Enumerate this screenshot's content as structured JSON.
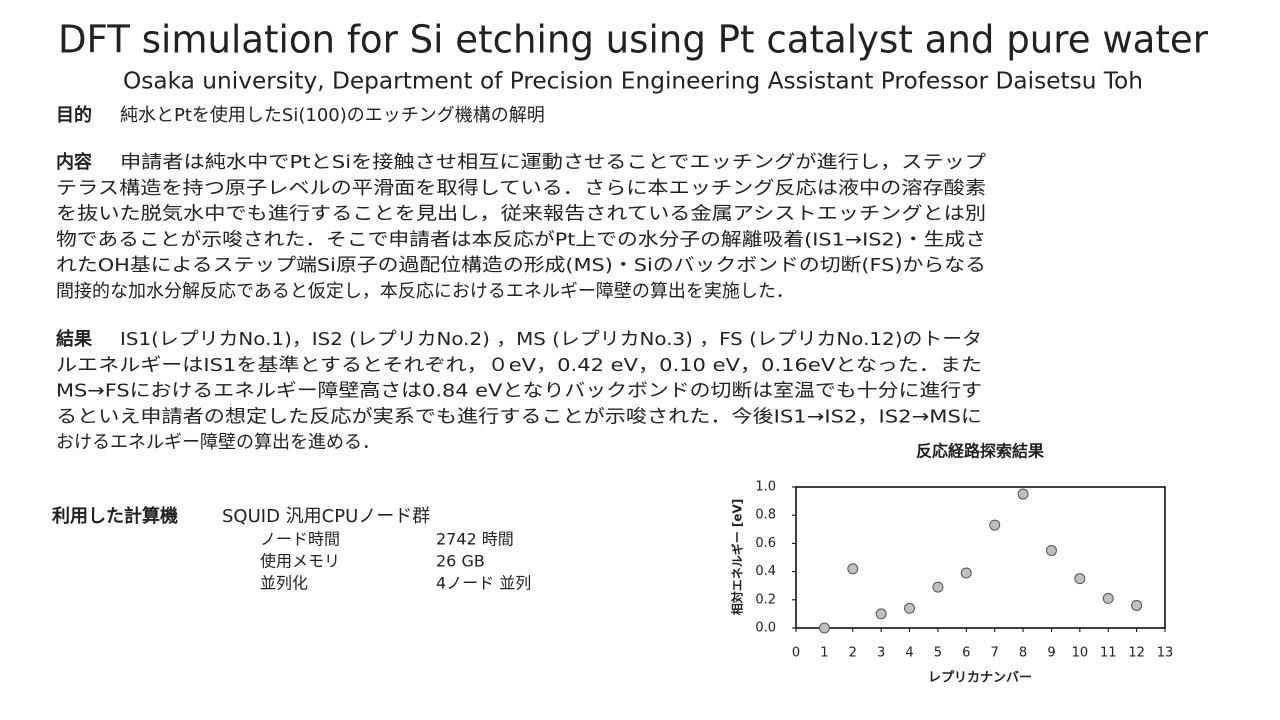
{
  "header": {
    "title": "DFT simulation for Si etching using Pt catalyst and pure water",
    "subtitle": "Osaka university, Department of Precision Engineering Assistant Professor Daisetsu Toh"
  },
  "purpose": {
    "label": "目的",
    "text": "純水とPtを使用したSi(100)のエッチング機構の解明"
  },
  "content": {
    "label": "内容",
    "lines": [
      "申請者は純水中でPtとSiを接触させ相互に運動させることでエッチングが進行し，ステップ",
      "テラス構造を持つ原子レベルの平滑面を取得している．さらに本エッチング反応は液中の溶存酸素",
      "を抜いた脱気水中でも進行することを見出し，従来報告されている金属アシストエッチングとは別",
      "物であることが示唆された．そこで申請者は本反応がPt上での水分子の解離吸着(IS1→IS2)・生成さ",
      "れたOH基によるステップ端Si原子の過配位構造の形成(MS)・Siのバックボンドの切断(FS)からなる",
      "間接的な加水分解反応であると仮定し，本反応におけるエネルギー障壁の算出を実施した．"
    ]
  },
  "results": {
    "label": "結果",
    "lines": [
      "IS1(レプリカNo.1)，IS2 (レプリカNo.2) ，MS (レプリカNo.3) ，FS (レプリカNo.12)のトータ",
      "ルエネルギーはIS1を基準とするとそれぞれ，０eV，0.42  eV，0.10 eV，0.16eVとなった．また",
      "MS→FSにおけるエネルギー障壁高さは0.84  eVとなりバックボンドの切断は室温でも十分に進行す",
      "るといえ申請者の想定した反応が実系でも進行することが示唆された．今後IS1→IS2，IS2→MSに",
      "おけるエネルギー障壁の算出を進める．"
    ]
  },
  "computer": {
    "label": "利用した計算機",
    "name": "SQUID 汎用CPUノード群",
    "rows": [
      [
        "ノード時間",
        "2742 時間"
      ],
      [
        "使用メモリ",
        "26 GB"
      ],
      [
        "並列化",
        "4ノード 並列"
      ]
    ]
  },
  "chart_data": {
    "type": "scatter",
    "title": "反応経路探索結果",
    "x_label": "レプリカナンバー",
    "y_label": "相対エネルギー  [eV]",
    "x": [
      1,
      2,
      3,
      4,
      5,
      6,
      7,
      8,
      9,
      10,
      11,
      12
    ],
    "values": [
      0.0,
      0.42,
      0.1,
      0.14,
      0.29,
      0.39,
      0.73,
      0.95,
      0.55,
      0.35,
      0.21,
      0.16
    ],
    "color": "#bfbfbf",
    "xlim": [
      0,
      13
    ],
    "xticks": [
      0,
      1,
      2,
      3,
      4,
      5,
      6,
      7,
      8,
      9,
      10,
      11,
      12,
      13
    ],
    "ylim": [
      0,
      1
    ],
    "yticks": [
      {
        "value": 0,
        "label": "0.0"
      },
      {
        "value": 0.2,
        "label": "0.2"
      },
      {
        "value": 0.4,
        "label": "0.4"
      },
      {
        "value": 0.6,
        "label": "0.6"
      },
      {
        "value": 0.8,
        "label": "0.8"
      },
      {
        "value": 1,
        "label": "1.0"
      }
    ]
  }
}
